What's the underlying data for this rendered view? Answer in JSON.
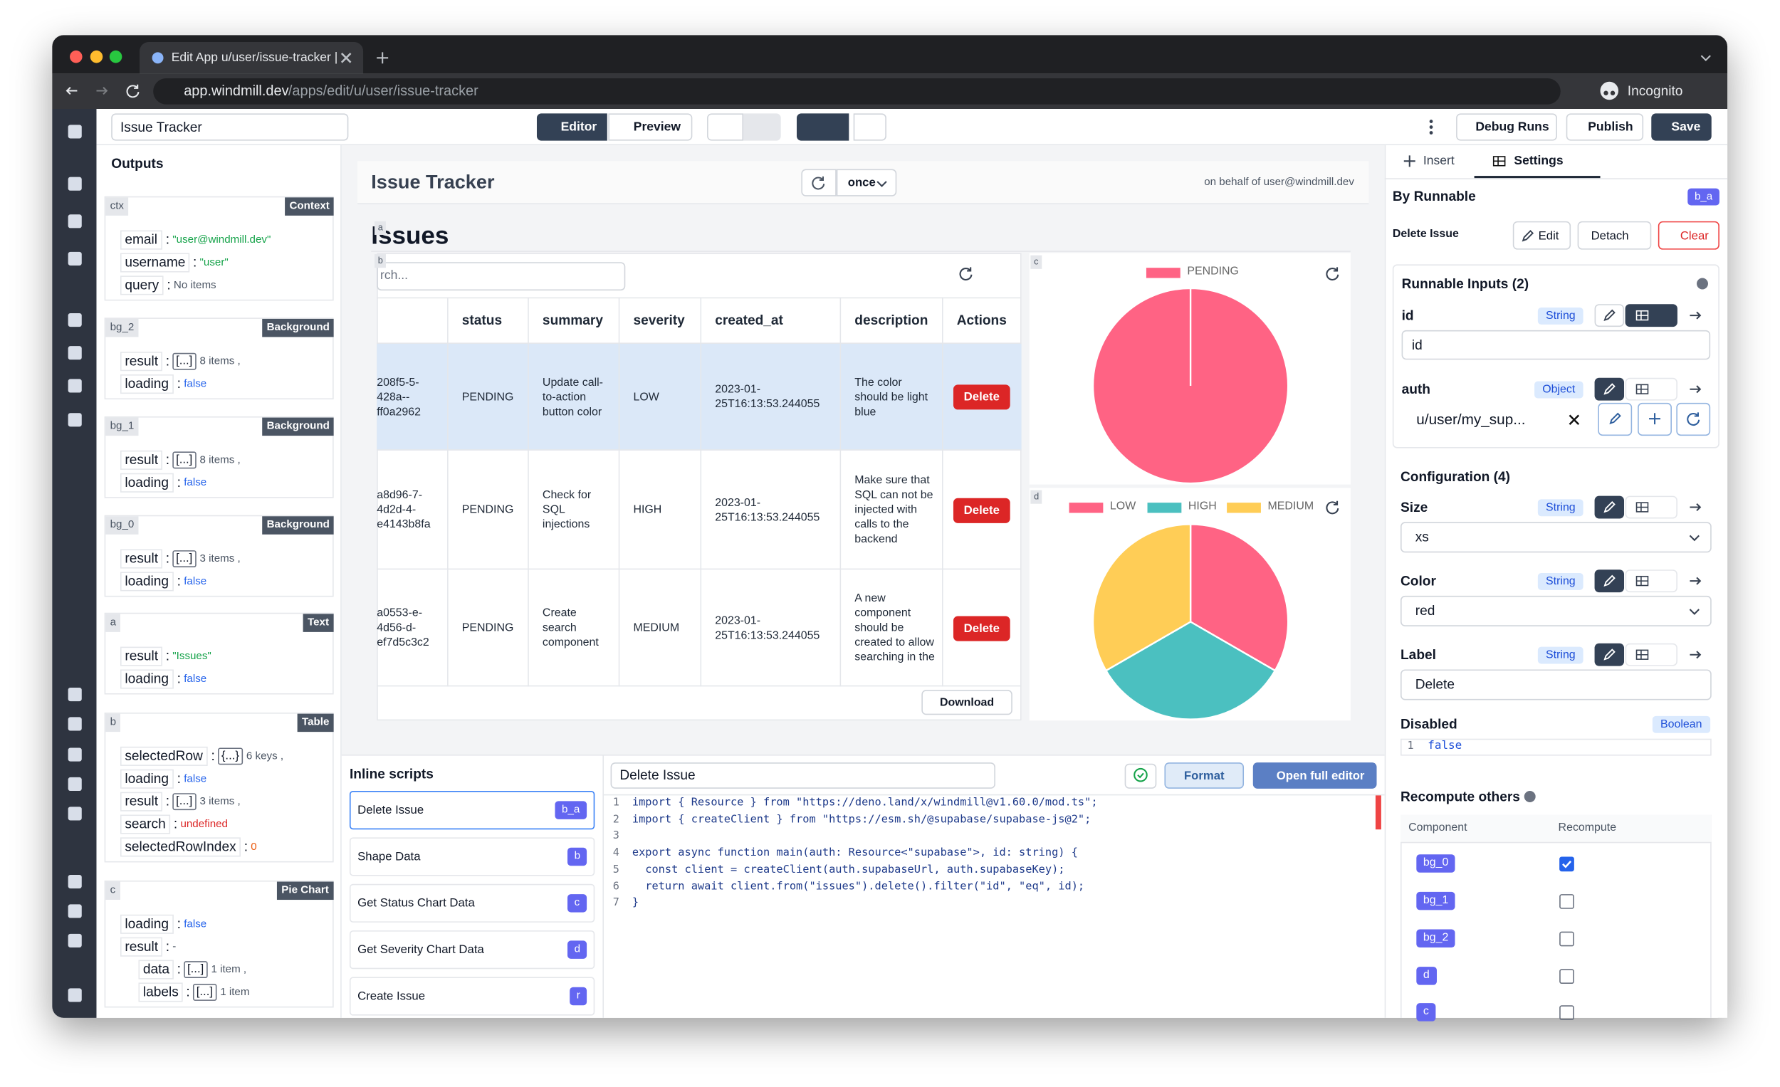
{
  "browser": {
    "tab_title": "Edit App u/user/issue-tracker |",
    "url_host": "app.windmill.dev",
    "url_path": "/apps/edit/u/user/issue-tracker",
    "profile": "Incognito"
  },
  "toolbar": {
    "app_name": "Issue Tracker",
    "editor": "Editor",
    "preview": "Preview",
    "debug_runs": "Debug Runs",
    "publish": "Publish",
    "save": "Save"
  },
  "outputs": {
    "title": "Outputs",
    "groups": [
      {
        "id": "ctx",
        "kind": "Context",
        "rows": [
          [
            "email",
            ":",
            "\"user@windmill.dev\""
          ],
          [
            "username",
            ":",
            "\"user\""
          ],
          [
            "query",
            ":",
            "No items"
          ]
        ]
      },
      {
        "id": "bg_2",
        "kind": "Background",
        "rows": [
          [
            "result",
            ":",
            "[...]",
            "8 items ,"
          ],
          [
            "loading",
            ":",
            "false"
          ]
        ]
      },
      {
        "id": "bg_1",
        "kind": "Background",
        "rows": [
          [
            "result",
            ":",
            "[...]",
            "8 items ,"
          ],
          [
            "loading",
            ":",
            "false"
          ]
        ]
      },
      {
        "id": "bg_0",
        "kind": "Background",
        "rows": [
          [
            "result",
            ":",
            "[...]",
            "3 items ,"
          ],
          [
            "loading",
            ":",
            "false"
          ]
        ]
      },
      {
        "id": "a",
        "kind": "Text",
        "rows": [
          [
            "result",
            ":",
            "\"Issues\""
          ],
          [
            "loading",
            ":",
            "false"
          ]
        ]
      },
      {
        "id": "b",
        "kind": "Table",
        "rows": [
          [
            "selectedRow",
            ":",
            "{...}",
            "6 keys ,"
          ],
          [
            "loading",
            ":",
            "false"
          ],
          [
            "result",
            ":",
            "[...]",
            "3 items ,"
          ],
          [
            "search",
            ":",
            "undefined"
          ],
          [
            "selectedRowIndex",
            ":",
            "0"
          ]
        ]
      },
      {
        "id": "c",
        "kind": "Pie Chart",
        "rows": [
          [
            "loading",
            ":",
            "false"
          ],
          [
            "result",
            ":",
            "-"
          ]
        ],
        "nested_rows": [
          [
            "data",
            ":",
            "[...]",
            "1 item ,"
          ],
          [
            "labels",
            ":",
            "[...]",
            "1 item"
          ]
        ]
      }
    ]
  },
  "canvas": {
    "title": "Issue Tracker",
    "run_mode": "once",
    "on_behalf": "on behalf of user@windmill.dev",
    "labels": [
      "a",
      "b",
      "c",
      "d"
    ],
    "text_component": "Issues",
    "search": "rch...",
    "columns": [
      "status",
      "summary",
      "severity",
      "created_at",
      "description",
      "Actions"
    ],
    "rows": [
      [
        "208f5-5-428a--ff0a2962",
        "PENDING",
        "Update call-to-action button color",
        "LOW",
        "2023-01-25T16:13:53.244055",
        "The color should be light blue",
        "Delete"
      ],
      [
        "a8d96-7-4d2d-4-e4143b8fa",
        "PENDING",
        "Check for SQL injections",
        "HIGH",
        "2023-01-25T16:13:53.244055",
        "Make sure that SQL can not be injected with calls to the backend",
        "Delete"
      ],
      [
        "a0553-e-4d56-d-ef7d5c3c2",
        "PENDING",
        "Create search component",
        "MEDIUM",
        "2023-01-25T16:13:53.244055",
        "A new component should be created to allow searching in the",
        "Delete"
      ]
    ],
    "download": "Download",
    "chart_c": {
      "type": "pie",
      "series": [
        {
          "name": "PENDING",
          "color": "#ff6384",
          "value": 3
        }
      ]
    },
    "chart_d": {
      "type": "pie",
      "series": [
        {
          "name": "LOW",
          "color": "#ff6384",
          "value": 1
        },
        {
          "name": "HIGH",
          "color": "#4bc0c0",
          "value": 1
        },
        {
          "name": "MEDIUM",
          "color": "#ffcd56",
          "value": 1
        }
      ]
    }
  },
  "scripts": {
    "title": "Inline scripts",
    "items": [
      {
        "name": "Delete Issue",
        "id": "b_a"
      },
      {
        "name": "Shape Data",
        "id": "b"
      },
      {
        "name": "Get Status Chart Data",
        "id": "c"
      },
      {
        "name": "Get Severity Chart Data",
        "id": "d"
      },
      {
        "name": "Create Issue",
        "id": "r"
      }
    ]
  },
  "editor": {
    "script_name": "Delete Issue",
    "format": "Format",
    "open_full_editor": "Open full editor",
    "code": [
      {
        "line": 1,
        "text": "import { Resource } from \"https://deno.land/x/windmill@v1.60.0/mod.ts\";"
      },
      {
        "line": 2,
        "text": "import { createClient } from \"https://esm.sh/@supabase/supabase-js@2\";"
      },
      {
        "line": 3
      },
      {
        "line": 4,
        "text": "export async function main(auth: Resource<\"supabase\">, id: string) {"
      },
      {
        "line": 5,
        "text": "  const client = createClient(auth.supabaseUrl, auth.supabaseKey);"
      },
      {
        "line": 6,
        "text": "  return await client.from(\"issues\").delete().filter(\"id\", \"eq\", id);"
      },
      {
        "line": 7,
        "text": "}"
      }
    ]
  },
  "settings": {
    "tabs": [
      "Insert",
      "Settings"
    ],
    "by_runnable": "By Runnable",
    "runnable_id": "b_a",
    "runnable_name": "Delete Issue",
    "edit": "Edit",
    "detach": "Detach",
    "clear": "Clear",
    "inputs_title": "Runnable Inputs (2)",
    "inputs": [
      {
        "name": "id",
        "type": "String",
        "value": "id"
      },
      {
        "name": "auth",
        "type": "Object",
        "value": "u/user/my_sup..."
      }
    ],
    "config_title": "Configuration (4)",
    "config": [
      {
        "name": "Size",
        "type": "String",
        "value": "xs"
      },
      {
        "name": "Color",
        "type": "String",
        "value": "red"
      },
      {
        "name": "Label",
        "type": "String",
        "value": "Delete"
      },
      {
        "name": "Disabled",
        "type": "Boolean",
        "code": {
          "line": 1,
          "text": "false"
        }
      }
    ],
    "recompute_title": "Recompute others",
    "recompute_columns": [
      "Component",
      "Recompute"
    ],
    "recompute_rows": [
      {
        "component": "bg_0",
        "recompute": true
      },
      {
        "component": "bg_1",
        "recompute": false
      },
      {
        "component": "bg_2",
        "recompute": false
      },
      {
        "component": "d",
        "recompute": false
      },
      {
        "component": "c",
        "recompute": false
      }
    ]
  }
}
